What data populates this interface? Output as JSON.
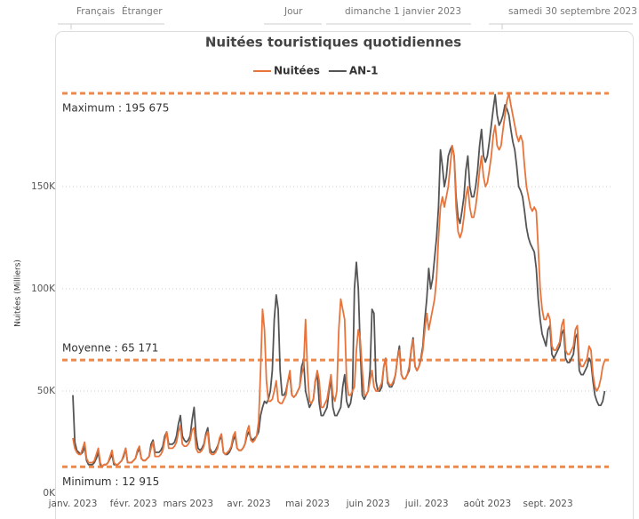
{
  "filters": [
    "Français",
    "Étranger",
    "Jour",
    "dimanche 1 janvier 2023",
    "samedi 30 septembre 2023"
  ],
  "chart_data": {
    "type": "line",
    "title": "Nuitées touristiques quotidiennes",
    "y_label": "Nuitées (Milliers)",
    "ylim": [
      0,
      200
    ],
    "yticks": [
      {
        "value": 0,
        "label": "0K"
      },
      {
        "value": 50,
        "label": "50K"
      },
      {
        "value": 100,
        "label": "100K"
      },
      {
        "value": 150,
        "label": "150K"
      }
    ],
    "xlim": [
      0,
      272
    ],
    "xticks": [
      {
        "value": 0,
        "label": "janv. 2023"
      },
      {
        "value": 31,
        "label": "févr. 2023"
      },
      {
        "value": 59,
        "label": "mars 2023"
      },
      {
        "value": 90,
        "label": "avr. 2023"
      },
      {
        "value": 120,
        "label": "mai 2023"
      },
      {
        "value": 151,
        "label": "juin 2023"
      },
      {
        "value": 181,
        "label": "juil. 2023"
      },
      {
        "value": 212,
        "label": "août 2023"
      },
      {
        "value": 243,
        "label": "sept. 2023"
      }
    ],
    "grid": true,
    "reference_lines": [
      {
        "label": "Maximum : 195 675",
        "value": 195.675,
        "color": "#ec8a4e"
      },
      {
        "label": "Moyenne : 65 171",
        "value": 65.171,
        "color": "#ec8a4e"
      },
      {
        "label": "Minimum : 12 915",
        "value": 12.915,
        "color": "#ec8a4e"
      }
    ],
    "series": [
      {
        "name": "Nuitées",
        "color": "#e8743b",
        "values": [
          27,
          22,
          20,
          19,
          19,
          22,
          25,
          17,
          15,
          15,
          15,
          16,
          19,
          22,
          15,
          12.915,
          14,
          14,
          15,
          18,
          21,
          15,
          14,
          14,
          15,
          16,
          19,
          22,
          15,
          15,
          15,
          16,
          17,
          21,
          23,
          17,
          16,
          16,
          17,
          18,
          22,
          25,
          18,
          18,
          18,
          19,
          21,
          26,
          30,
          22,
          22,
          22,
          23,
          25,
          30,
          33,
          24,
          23,
          23,
          24,
          26,
          31,
          32,
          22,
          20,
          20,
          21,
          23,
          28,
          30,
          20,
          19,
          19,
          20,
          22,
          27,
          29,
          20,
          19,
          20,
          21,
          23,
          28,
          30,
          22,
          21,
          21,
          22,
          24,
          30,
          33,
          26,
          25,
          26,
          28,
          35,
          60,
          90,
          80,
          55,
          45,
          45,
          46,
          50,
          55,
          45,
          44,
          44,
          46,
          48,
          55,
          60,
          48,
          47,
          48,
          50,
          52,
          58,
          62,
          85,
          60,
          45,
          44,
          46,
          55,
          60,
          55,
          42,
          42,
          44,
          46,
          52,
          58,
          48,
          45,
          50,
          80,
          95,
          90,
          85,
          55,
          48,
          48,
          50,
          52,
          70,
          80,
          75,
          60,
          48,
          48,
          50,
          55,
          60,
          52,
          50,
          50,
          52,
          54,
          62,
          66,
          55,
          53,
          53,
          55,
          58,
          66,
          70,
          58,
          56,
          56,
          58,
          62,
          70,
          75,
          62,
          60,
          62,
          65,
          70,
          80,
          88,
          80,
          85,
          90,
          95,
          105,
          125,
          140,
          145,
          140,
          145,
          150,
          160,
          170,
          165,
          140,
          128,
          125,
          128,
          135,
          145,
          150,
          140,
          135,
          135,
          140,
          148,
          158,
          165,
          155,
          150,
          152,
          158,
          165,
          175,
          180,
          170,
          168,
          170,
          178,
          185,
          192,
          195.675,
          190,
          185,
          180,
          175,
          172,
          175,
          172,
          160,
          150,
          145,
          140,
          138,
          140,
          138,
          120,
          100,
          90,
          85,
          85,
          88,
          85,
          72,
          70,
          70,
          72,
          74,
          82,
          85,
          70,
          68,
          68,
          70,
          72,
          80,
          82,
          65,
          62,
          62,
          64,
          66,
          72,
          70,
          58,
          52,
          50,
          52,
          56,
          62,
          65
        ]
      },
      {
        "name": "AN-1",
        "color": "#555555",
        "values": [
          48,
          25,
          21,
          20,
          19,
          20,
          23,
          16,
          14,
          14,
          14,
          15,
          17,
          20,
          14,
          13,
          14,
          14,
          15,
          17,
          19,
          14,
          14,
          14,
          15,
          16,
          18,
          22,
          15,
          15,
          15,
          16,
          17,
          20,
          22,
          17,
          16,
          16,
          17,
          18,
          24,
          26,
          20,
          20,
          20,
          21,
          23,
          28,
          30,
          24,
          24,
          24,
          25,
          28,
          34,
          38,
          28,
          26,
          25,
          26,
          28,
          36,
          42,
          28,
          22,
          21,
          22,
          24,
          29,
          32,
          22,
          20,
          20,
          21,
          23,
          26,
          28,
          20,
          19,
          19,
          20,
          22,
          26,
          28,
          22,
          21,
          21,
          22,
          24,
          28,
          30,
          27,
          26,
          27,
          28,
          30,
          38,
          42,
          45,
          44,
          46,
          50,
          60,
          85,
          97,
          90,
          60,
          48,
          48,
          50,
          55,
          58,
          48,
          47,
          48,
          50,
          52,
          62,
          65,
          50,
          46,
          42,
          44,
          46,
          55,
          58,
          44,
          38,
          38,
          40,
          42,
          50,
          56,
          42,
          38,
          38,
          40,
          42,
          52,
          58,
          45,
          42,
          44,
          50,
          100,
          113,
          100,
          70,
          48,
          46,
          48,
          50,
          60,
          90,
          88,
          55,
          50,
          50,
          52,
          62,
          66,
          54,
          52,
          52,
          54,
          58,
          66,
          72,
          58,
          56,
          56,
          58,
          60,
          70,
          76,
          62,
          60,
          62,
          66,
          72,
          85,
          95,
          110,
          100,
          105,
          115,
          125,
          140,
          168,
          160,
          150,
          155,
          165,
          168,
          170,
          165,
          145,
          135,
          132,
          138,
          145,
          158,
          165,
          150,
          145,
          145,
          150,
          158,
          170,
          178,
          165,
          162,
          165,
          172,
          180,
          188,
          195,
          185,
          180,
          182,
          185,
          190,
          188,
          185,
          178,
          172,
          168,
          160,
          150,
          148,
          145,
          138,
          130,
          125,
          122,
          120,
          118,
          110,
          95,
          85,
          78,
          75,
          72,
          80,
          82,
          68,
          66,
          68,
          70,
          72,
          78,
          80,
          66,
          64,
          64,
          66,
          68,
          76,
          78,
          60,
          58,
          58,
          60,
          62,
          66,
          64,
          55,
          48,
          45,
          43,
          43,
          45,
          50
        ]
      }
    ]
  }
}
